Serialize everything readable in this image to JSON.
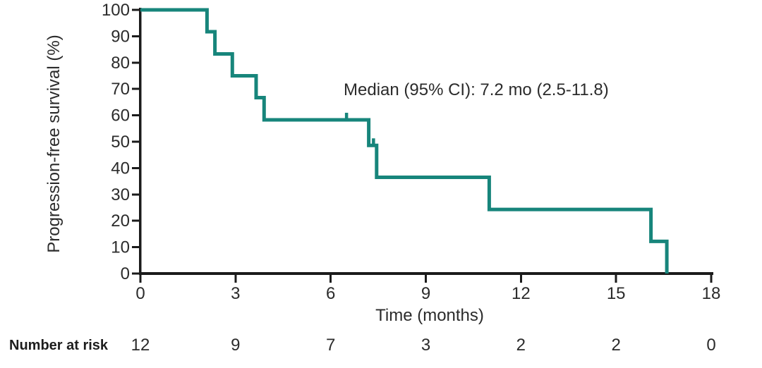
{
  "chart_data": {
    "type": "line",
    "subtype": "kaplan-meier-step",
    "annotation": "Median (95% CI): 7.2 mo (2.5-11.8)",
    "xlabel": "Time (months)",
    "ylabel": "Progression-free survival (%)",
    "xlim": [
      0,
      18
    ],
    "ylim": [
      0,
      100
    ],
    "x_ticks": [
      0,
      3,
      6,
      9,
      12,
      15,
      18
    ],
    "y_ticks": [
      0,
      10,
      20,
      30,
      40,
      50,
      60,
      70,
      80,
      90,
      100
    ],
    "grid": false,
    "legend": "none",
    "colors": {
      "curve": "#17857B",
      "axis": "#1b1b1b",
      "text": "#2b2b2b"
    },
    "series": [
      {
        "name": "progression-free-survival",
        "color": "#17857B",
        "steps": [
          [
            0,
            100
          ],
          [
            2.1,
            100
          ],
          [
            2.1,
            91.7
          ],
          [
            2.35,
            91.7
          ],
          [
            2.35,
            83.3
          ],
          [
            2.9,
            83.3
          ],
          [
            2.9,
            75
          ],
          [
            3.65,
            75
          ],
          [
            3.65,
            66.7
          ],
          [
            3.9,
            66.7
          ],
          [
            3.9,
            58.3
          ],
          [
            7.2,
            58.3
          ],
          [
            7.2,
            48.6
          ],
          [
            7.45,
            48.6
          ],
          [
            7.45,
            36.5
          ],
          [
            11,
            36.5
          ],
          [
            11,
            24.3
          ],
          [
            16.1,
            24.3
          ],
          [
            16.1,
            12.2
          ],
          [
            16.6,
            12.2
          ],
          [
            16.6,
            0
          ]
        ],
        "censor_marks": [
          [
            6.5,
            58.3
          ],
          [
            7.35,
            48.6
          ]
        ]
      }
    ],
    "number_at_risk": {
      "label": "Number at risk",
      "times": [
        0,
        3,
        6,
        9,
        12,
        15,
        18
      ],
      "values": [
        12,
        9,
        7,
        3,
        2,
        2,
        0
      ]
    }
  }
}
